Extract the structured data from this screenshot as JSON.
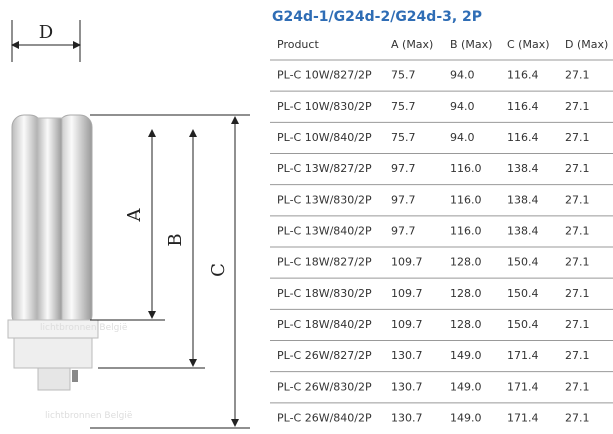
{
  "diagram": {
    "labels": [
      "D",
      "A",
      "B",
      "C"
    ],
    "watermark": "lichtbronnen België"
  },
  "title": "G24d-1/G24d-2/G24d-3, 2P",
  "table": {
    "columns": [
      "Product",
      "A (Max)",
      "B (Max)",
      "C (Max)",
      "D (Max)"
    ],
    "rows": [
      [
        "PL-C 10W/827/2P",
        "75.7",
        "94.0",
        "116.4",
        "27.1"
      ],
      [
        "PL-C 10W/830/2P",
        "75.7",
        "94.0",
        "116.4",
        "27.1"
      ],
      [
        "PL-C 10W/840/2P",
        "75.7",
        "94.0",
        "116.4",
        "27.1"
      ],
      [
        "PL-C 13W/827/2P",
        "97.7",
        "116.0",
        "138.4",
        "27.1"
      ],
      [
        "PL-C 13W/830/2P",
        "97.7",
        "116.0",
        "138.4",
        "27.1"
      ],
      [
        "PL-C 13W/840/2P",
        "97.7",
        "116.0",
        "138.4",
        "27.1"
      ],
      [
        "PL-C 18W/827/2P",
        "109.7",
        "128.0",
        "150.4",
        "27.1"
      ],
      [
        "PL-C 18W/830/2P",
        "109.7",
        "128.0",
        "150.4",
        "27.1"
      ],
      [
        "PL-C 18W/840/2P",
        "109.7",
        "128.0",
        "150.4",
        "27.1"
      ],
      [
        "PL-C 26W/827/2P",
        "130.7",
        "149.0",
        "171.4",
        "27.1"
      ],
      [
        "PL-C 26W/830/2P",
        "130.7",
        "149.0",
        "171.4",
        "27.1"
      ],
      [
        "PL-C 26W/840/2P",
        "130.7",
        "149.0",
        "171.4",
        "27.1"
      ]
    ]
  }
}
